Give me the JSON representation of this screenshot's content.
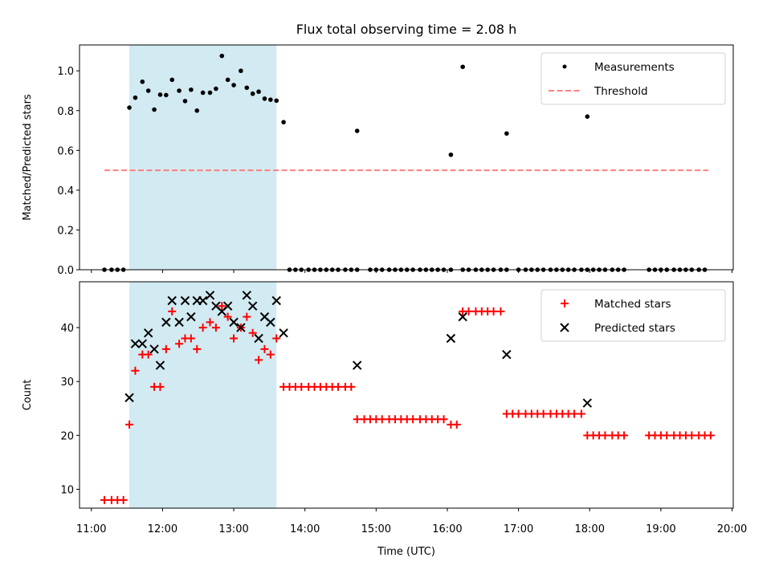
{
  "figure": {
    "title": "Flux total observing time = 2.08 h",
    "xlabel": "Time (UTC)",
    "x_tick_labels": [
      "11:00",
      "12:00",
      "13:00",
      "14:00",
      "15:00",
      "16:00",
      "17:00",
      "18:00",
      "19:00",
      "20:00"
    ]
  },
  "colors": {
    "highlight": "#add8e6",
    "measurements": "#000000",
    "threshold": "#ff7f7f",
    "matched": "#ff0000",
    "predicted": "#000000"
  },
  "chart_data": [
    {
      "type": "scatter",
      "ylabel": "Matched/Predicted stars",
      "xlim": [
        "10:50",
        "20:01"
      ],
      "ylim": [
        0,
        1.13
      ],
      "y_ticks": [
        "0.0",
        "0.2",
        "0.4",
        "0.6",
        "0.8",
        "1.0"
      ],
      "legend": [
        "Measurements",
        "Threshold"
      ],
      "legend_position": "top-right",
      "shaded_span": [
        "11:32",
        "13:36"
      ],
      "threshold": {
        "y": 0.5,
        "x": [
          "11:11",
          "19:40"
        ],
        "name": "Threshold"
      },
      "series": [
        {
          "name": "Measurements",
          "marker": "dot",
          "points": [
            [
              "11:11",
              0.0
            ],
            [
              "11:17",
              0.0
            ],
            [
              "11:22",
              0.0
            ],
            [
              "11:27",
              0.0
            ],
            [
              "11:32",
              0.815
            ],
            [
              "11:37",
              0.865
            ],
            [
              "11:43",
              0.945
            ],
            [
              "11:48",
              0.9
            ],
            [
              "11:53",
              0.805
            ],
            [
              "11:58",
              0.88
            ],
            [
              "12:03",
              0.878
            ],
            [
              "12:08",
              0.955
            ],
            [
              "12:14",
              0.9
            ],
            [
              "12:19",
              0.848
            ],
            [
              "12:24",
              0.905
            ],
            [
              "12:29",
              0.8
            ],
            [
              "12:34",
              0.89
            ],
            [
              "12:40",
              0.89
            ],
            [
              "12:45",
              0.91
            ],
            [
              "12:50",
              1.075
            ],
            [
              "12:55",
              0.955
            ],
            [
              "13:00",
              0.928
            ],
            [
              "13:06",
              1.0
            ],
            [
              "13:11",
              0.915
            ],
            [
              "13:16",
              0.885
            ],
            [
              "13:21",
              0.895
            ],
            [
              "13:26",
              0.86
            ],
            [
              "13:31",
              0.855
            ],
            [
              "13:36",
              0.85
            ],
            [
              "13:42",
              0.742
            ],
            [
              "13:47",
              0.0
            ],
            [
              "13:52",
              0.0
            ],
            [
              "13:57",
              0.0
            ],
            [
              "14:03",
              0.0
            ],
            [
              "14:08",
              0.0
            ],
            [
              "14:13",
              0.0
            ],
            [
              "14:18",
              0.0
            ],
            [
              "14:23",
              0.0
            ],
            [
              "14:28",
              0.0
            ],
            [
              "14:34",
              0.0
            ],
            [
              "14:39",
              0.0
            ],
            [
              "14:44",
              0.0
            ],
            [
              "14:44",
              0.698
            ],
            [
              "14:55",
              0.0
            ],
            [
              "15:00",
              0.0
            ],
            [
              "15:05",
              0.0
            ],
            [
              "15:11",
              0.0
            ],
            [
              "15:16",
              0.0
            ],
            [
              "15:21",
              0.0
            ],
            [
              "15:26",
              0.0
            ],
            [
              "15:31",
              0.0
            ],
            [
              "15:37",
              0.0
            ],
            [
              "15:42",
              0.0
            ],
            [
              "15:47",
              0.0
            ],
            [
              "15:52",
              0.0
            ],
            [
              "15:57",
              0.0
            ],
            [
              "16:03",
              0.0
            ],
            [
              "16:03",
              0.578
            ],
            [
              "16:13",
              0.0
            ],
            [
              "16:13",
              1.02
            ],
            [
              "16:18",
              0.0
            ],
            [
              "16:24",
              0.0
            ],
            [
              "16:29",
              0.0
            ],
            [
              "16:34",
              0.0
            ],
            [
              "16:39",
              0.0
            ],
            [
              "16:45",
              0.0
            ],
            [
              "16:50",
              0.0
            ],
            [
              "16:50",
              0.685
            ],
            [
              "17:00",
              0.0
            ],
            [
              "17:06",
              0.0
            ],
            [
              "17:11",
              0.0
            ],
            [
              "17:16",
              0.0
            ],
            [
              "17:21",
              0.0
            ],
            [
              "17:27",
              0.0
            ],
            [
              "17:32",
              0.0
            ],
            [
              "17:37",
              0.0
            ],
            [
              "17:42",
              0.0
            ],
            [
              "17:47",
              0.0
            ],
            [
              "17:53",
              0.0
            ],
            [
              "17:58",
              0.0
            ],
            [
              "17:58",
              0.77
            ],
            [
              "18:03",
              0.0
            ],
            [
              "18:08",
              0.0
            ],
            [
              "18:13",
              0.0
            ],
            [
              "18:19",
              0.0
            ],
            [
              "18:24",
              0.0
            ],
            [
              "18:29",
              0.0
            ],
            [
              "18:50",
              0.0
            ],
            [
              "18:55",
              0.0
            ],
            [
              "19:00",
              0.0
            ],
            [
              "19:05",
              0.0
            ],
            [
              "19:11",
              0.0
            ],
            [
              "19:16",
              0.0
            ],
            [
              "19:21",
              0.0
            ],
            [
              "19:26",
              0.0
            ],
            [
              "19:32",
              0.0
            ],
            [
              "19:37",
              0.0
            ]
          ]
        }
      ]
    },
    {
      "type": "scatter",
      "ylabel": "Count",
      "xlim": [
        "10:50",
        "20:01"
      ],
      "ylim": [
        6.5,
        48.5
      ],
      "y_ticks": [
        "10",
        "20",
        "30",
        "40"
      ],
      "legend": [
        "Matched stars",
        "Predicted stars"
      ],
      "legend_position": "top-right",
      "shaded_span": [
        "11:32",
        "13:36"
      ],
      "series": [
        {
          "name": "Matched stars",
          "marker": "plus",
          "points": [
            [
              "11:11",
              8
            ],
            [
              "11:17",
              8
            ],
            [
              "11:22",
              8
            ],
            [
              "11:27",
              8
            ],
            [
              "11:32",
              22
            ],
            [
              "11:37",
              32
            ],
            [
              "11:43",
              35
            ],
            [
              "11:48",
              35
            ],
            [
              "11:53",
              29
            ],
            [
              "11:58",
              29
            ],
            [
              "12:03",
              36
            ],
            [
              "12:08",
              43
            ],
            [
              "12:14",
              37
            ],
            [
              "12:19",
              38
            ],
            [
              "12:24",
              38
            ],
            [
              "12:29",
              36
            ],
            [
              "12:34",
              40
            ],
            [
              "12:40",
              41
            ],
            [
              "12:45",
              40
            ],
            [
              "12:50",
              44
            ],
            [
              "12:55",
              42
            ],
            [
              "13:00",
              38
            ],
            [
              "13:06",
              40
            ],
            [
              "13:11",
              42
            ],
            [
              "13:16",
              39
            ],
            [
              "13:21",
              34
            ],
            [
              "13:26",
              36
            ],
            [
              "13:31",
              35
            ],
            [
              "13:36",
              38
            ],
            [
              "13:42",
              29
            ],
            [
              "13:47",
              29
            ],
            [
              "13:52",
              29
            ],
            [
              "13:57",
              29
            ],
            [
              "14:03",
              29
            ],
            [
              "14:08",
              29
            ],
            [
              "14:13",
              29
            ],
            [
              "14:18",
              29
            ],
            [
              "14:23",
              29
            ],
            [
              "14:28",
              29
            ],
            [
              "14:34",
              29
            ],
            [
              "14:39",
              29
            ],
            [
              "14:44",
              23
            ],
            [
              "14:50",
              23
            ],
            [
              "14:55",
              23
            ],
            [
              "15:00",
              23
            ],
            [
              "15:05",
              23
            ],
            [
              "15:11",
              23
            ],
            [
              "15:16",
              23
            ],
            [
              "15:21",
              23
            ],
            [
              "15:26",
              23
            ],
            [
              "15:31",
              23
            ],
            [
              "15:37",
              23
            ],
            [
              "15:42",
              23
            ],
            [
              "15:47",
              23
            ],
            [
              "15:52",
              23
            ],
            [
              "15:57",
              23
            ],
            [
              "16:03",
              22
            ],
            [
              "16:08",
              22
            ],
            [
              "16:13",
              43
            ],
            [
              "16:18",
              43
            ],
            [
              "16:24",
              43
            ],
            [
              "16:29",
              43
            ],
            [
              "16:34",
              43
            ],
            [
              "16:39",
              43
            ],
            [
              "16:45",
              43
            ],
            [
              "16:50",
              24
            ],
            [
              "16:55",
              24
            ],
            [
              "17:00",
              24
            ],
            [
              "17:06",
              24
            ],
            [
              "17:11",
              24
            ],
            [
              "17:16",
              24
            ],
            [
              "17:21",
              24
            ],
            [
              "17:27",
              24
            ],
            [
              "17:32",
              24
            ],
            [
              "17:37",
              24
            ],
            [
              "17:42",
              24
            ],
            [
              "17:47",
              24
            ],
            [
              "17:53",
              24
            ],
            [
              "17:58",
              20
            ],
            [
              "18:03",
              20
            ],
            [
              "18:08",
              20
            ],
            [
              "18:13",
              20
            ],
            [
              "18:19",
              20
            ],
            [
              "18:24",
              20
            ],
            [
              "18:29",
              20
            ],
            [
              "18:50",
              20
            ],
            [
              "18:55",
              20
            ],
            [
              "19:00",
              20
            ],
            [
              "19:05",
              20
            ],
            [
              "19:11",
              20
            ],
            [
              "19:16",
              20
            ],
            [
              "19:21",
              20
            ],
            [
              "19:26",
              20
            ],
            [
              "19:32",
              20
            ],
            [
              "19:37",
              20
            ],
            [
              "19:42",
              20
            ]
          ]
        },
        {
          "name": "Predicted stars",
          "marker": "x",
          "points": [
            [
              "11:32",
              27
            ],
            [
              "11:37",
              37
            ],
            [
              "11:43",
              37
            ],
            [
              "11:48",
              39
            ],
            [
              "11:53",
              36
            ],
            [
              "11:58",
              33
            ],
            [
              "12:03",
              41
            ],
            [
              "12:08",
              45
            ],
            [
              "12:14",
              41
            ],
            [
              "12:19",
              45
            ],
            [
              "12:24",
              42
            ],
            [
              "12:29",
              45
            ],
            [
              "12:34",
              45
            ],
            [
              "12:40",
              46
            ],
            [
              "12:45",
              44
            ],
            [
              "12:50",
              43
            ],
            [
              "12:55",
              44
            ],
            [
              "13:00",
              41
            ],
            [
              "13:06",
              40
            ],
            [
              "13:11",
              46
            ],
            [
              "13:16",
              44
            ],
            [
              "13:21",
              38
            ],
            [
              "13:26",
              42
            ],
            [
              "13:31",
              41
            ],
            [
              "13:36",
              45
            ],
            [
              "13:42",
              39
            ],
            [
              "14:44",
              33
            ],
            [
              "16:03",
              38
            ],
            [
              "16:13",
              42
            ],
            [
              "16:50",
              35
            ],
            [
              "17:58",
              26
            ]
          ]
        }
      ]
    }
  ]
}
